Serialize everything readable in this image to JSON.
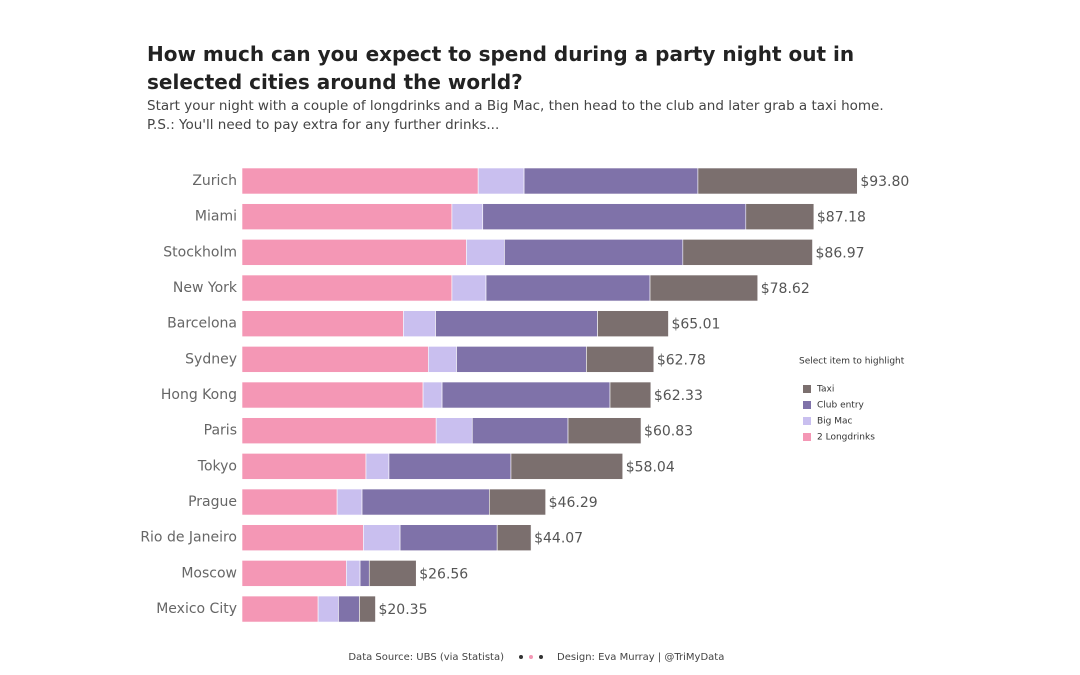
{
  "chart_data": {
    "type": "stacked_barh",
    "title": "How much can you expect to spend during a party night out in selected cities around the world?",
    "subtitle": [
      "Start your night with a couple of longdrinks and a Big Mac, then head to the club and later grab a taxi home.",
      "P.S.: You'll need to pay extra for any further drinks..."
    ],
    "categories": [
      "Zurich",
      "Miami",
      "Stockholm",
      "New York",
      "Barcelona",
      "Sydney",
      "Hong Kong",
      "Paris",
      "Tokyo",
      "Prague",
      "Rio de Janeiro",
      "Moscow",
      "Mexico City"
    ],
    "series": [
      {
        "name": "2 Longdrinks",
        "color": "#f497b5",
        "values": [
          36.0,
          32.0,
          34.2,
          32.0,
          24.6,
          28.4,
          27.6,
          29.6,
          18.9,
          14.5,
          18.5,
          15.9,
          11.6
        ]
      },
      {
        "name": "Big Mac",
        "color": "#c9bfef",
        "values": [
          7.0,
          4.7,
          5.8,
          5.2,
          4.9,
          4.3,
          2.9,
          5.5,
          3.5,
          3.8,
          5.6,
          2.1,
          3.1
        ]
      },
      {
        "name": "Club entry",
        "color": "#7f72a9",
        "values": [
          26.5,
          40.1,
          27.2,
          25.0,
          24.7,
          19.8,
          25.6,
          14.6,
          18.6,
          19.4,
          14.8,
          1.4,
          3.2
        ]
      },
      {
        "name": "Taxi",
        "color": "#7b6f6e",
        "values": [
          24.3,
          10.38,
          19.77,
          16.42,
          10.81,
          10.28,
          6.23,
          11.13,
          17.04,
          8.59,
          5.17,
          7.16,
          2.45
        ]
      }
    ],
    "totals": {
      "values": [
        93.8,
        87.18,
        86.97,
        78.62,
        65.01,
        62.78,
        62.33,
        60.83,
        58.04,
        46.29,
        44.07,
        26.56,
        20.35
      ],
      "value_labels": [
        "$93.80",
        "$87.18",
        "$86.97",
        "$78.62",
        "$65.01",
        "$62.78",
        "$62.33",
        "$60.83",
        "$58.04",
        "$46.29",
        "$44.07",
        "$26.56",
        "$20.35"
      ]
    },
    "xlim": [
      0,
      100
    ],
    "legend": {
      "title": "Select item to highlight",
      "position": "right"
    },
    "footer": {
      "source": "Data Source: UBS (via Statista)",
      "design": "Design: Eva Murray | @TriMyData"
    }
  }
}
